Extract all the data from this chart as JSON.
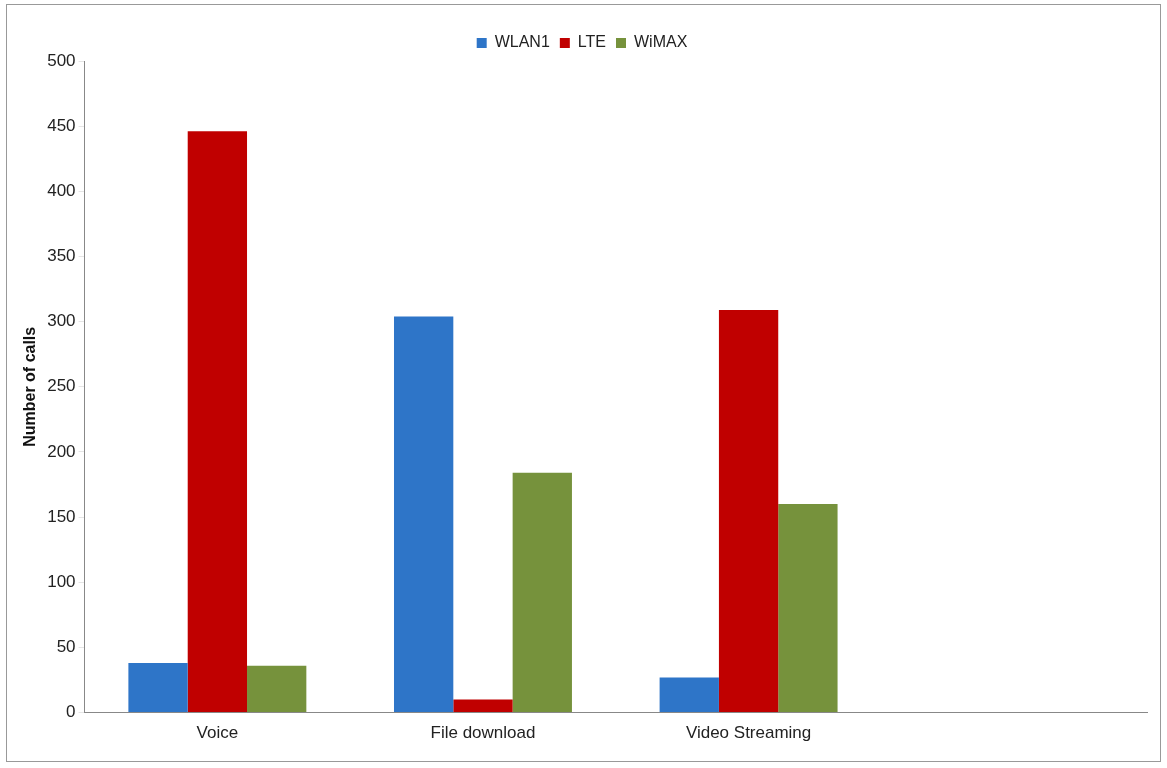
{
  "chart_data": {
    "type": "bar",
    "ylabel": "Number of calls",
    "categories": [
      "Voice",
      "File download",
      "Video Streaming",
      null
    ],
    "series": [
      {
        "name": "WLAN1",
        "color": "#2e75c8",
        "values": [
          38,
          304,
          27,
          null
        ]
      },
      {
        "name": "LTE",
        "color": "#c00000",
        "values": [
          446,
          10,
          309,
          null
        ]
      },
      {
        "name": "WiMAX",
        "color": "#76923c",
        "values": [
          36,
          184,
          160,
          null
        ]
      }
    ],
    "ylim": [
      0,
      500
    ],
    "yticks": [
      0,
      50,
      100,
      150,
      200,
      250,
      300,
      350,
      400,
      450,
      500
    ],
    "grid": false,
    "legend": "top"
  }
}
